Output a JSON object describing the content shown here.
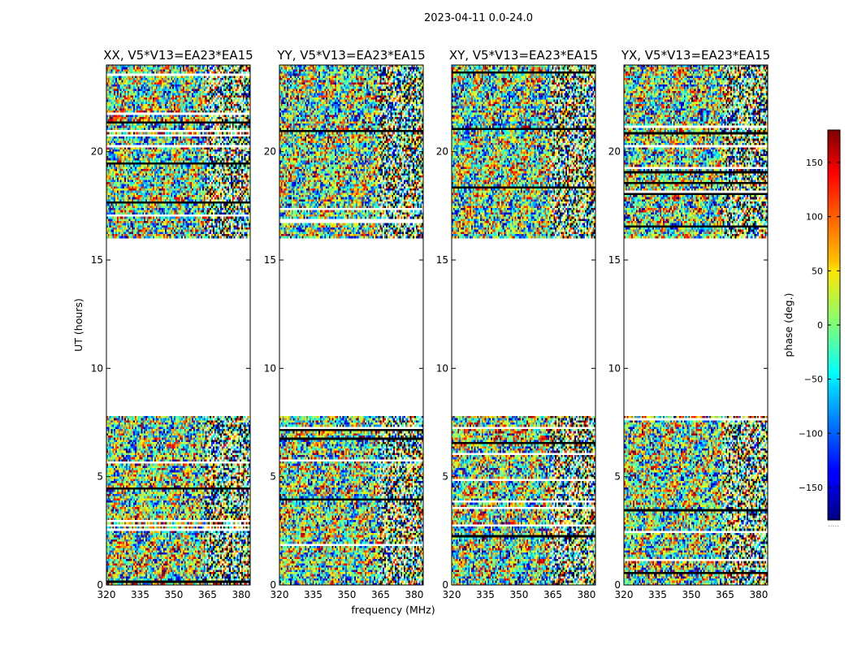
{
  "suptitle": "2023-04-11 0.0-24.0",
  "xlabel": "frequency (MHz)",
  "ylabel": "UT (hours)",
  "colorbar_label": "phase (deg.)",
  "colorbar_ticks": [
    "150",
    "100",
    "50",
    "0",
    "−50",
    "−100",
    "−150"
  ],
  "colorbar_note": ".....",
  "colormap": "jet",
  "chart_data": [
    {
      "type": "heatmap",
      "title": "XX, V5*V13=EA23*EA15",
      "x_ticks": [
        "320",
        "335",
        "350",
        "365",
        "380"
      ],
      "y_ticks": [
        "0",
        "5",
        "10",
        "15",
        "20"
      ],
      "xlim": [
        320,
        384
      ],
      "ylim": [
        0,
        24
      ],
      "value_range": [
        -180,
        180
      ],
      "data_gaps_hours": [
        [
          7.8,
          16.0
        ]
      ],
      "seed": 11
    },
    {
      "type": "heatmap",
      "title": "YY, V5*V13=EA23*EA15",
      "x_ticks": [
        "320",
        "335",
        "350",
        "365",
        "380"
      ],
      "y_ticks": [
        "0",
        "5",
        "10",
        "15",
        "20"
      ],
      "xlim": [
        320,
        384
      ],
      "ylim": [
        0,
        24
      ],
      "value_range": [
        -180,
        180
      ],
      "data_gaps_hours": [
        [
          7.8,
          16.0
        ]
      ],
      "seed": 23
    },
    {
      "type": "heatmap",
      "title": "XY, V5*V13=EA23*EA15",
      "x_ticks": [
        "320",
        "335",
        "350",
        "365",
        "380"
      ],
      "y_ticks": [
        "0",
        "5",
        "10",
        "15",
        "20"
      ],
      "xlim": [
        320,
        384
      ],
      "ylim": [
        0,
        24
      ],
      "value_range": [
        -180,
        180
      ],
      "data_gaps_hours": [
        [
          7.8,
          16.0
        ]
      ],
      "seed": 37
    },
    {
      "type": "heatmap",
      "title": "YX, V5*V13=EA23*EA15",
      "x_ticks": [
        "320",
        "335",
        "350",
        "365",
        "380"
      ],
      "y_ticks": [
        "0",
        "5",
        "10",
        "15",
        "20"
      ],
      "xlim": [
        320,
        384
      ],
      "ylim": [
        0,
        24
      ],
      "value_range": [
        -180,
        180
      ],
      "data_gaps_hours": [
        [
          7.8,
          16.0
        ]
      ],
      "seed": 53
    }
  ]
}
